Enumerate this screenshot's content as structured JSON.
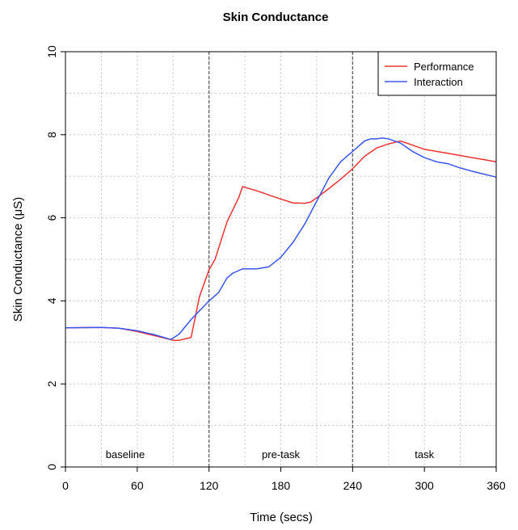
{
  "chart_data": {
    "type": "line",
    "title": "Skin Conductance",
    "xlabel": "Time (secs)",
    "ylabel": "Skin Conductance (μS)",
    "xlim": [
      0,
      360
    ],
    "ylim": [
      0,
      10
    ],
    "x_ticks": [
      0,
      60,
      120,
      180,
      240,
      300,
      360
    ],
    "y_ticks": [
      0,
      2,
      4,
      6,
      8,
      10
    ],
    "grid": true,
    "legend_position": "top-right",
    "phase_boundaries": [
      120,
      240
    ],
    "phases": [
      {
        "label": "baseline",
        "x": 50
      },
      {
        "label": "pre-task",
        "x": 180
      },
      {
        "label": "task",
        "x": 300
      }
    ],
    "series": [
      {
        "name": "Performance",
        "color": "#ee3333",
        "x": [
          0,
          30,
          45,
          60,
          75,
          90,
          95,
          105,
          112,
          120,
          125,
          135,
          145,
          148,
          160,
          175,
          190,
          200,
          205,
          210,
          220,
          230,
          240,
          250,
          260,
          270,
          280,
          290,
          300,
          310,
          320,
          330,
          340,
          350,
          360
        ],
        "y": [
          3.35,
          3.36,
          3.34,
          3.26,
          3.16,
          3.05,
          3.05,
          3.12,
          4.1,
          4.75,
          5.0,
          5.9,
          6.5,
          6.75,
          6.65,
          6.5,
          6.36,
          6.35,
          6.38,
          6.48,
          6.7,
          6.93,
          7.18,
          7.48,
          7.68,
          7.78,
          7.85,
          7.75,
          7.65,
          7.6,
          7.55,
          7.5,
          7.45,
          7.4,
          7.35
        ]
      },
      {
        "name": "Interaction",
        "color": "#3b55f0",
        "x": [
          0,
          30,
          45,
          60,
          75,
          88,
          95,
          105,
          115,
          120,
          128,
          135,
          140,
          148,
          160,
          170,
          180,
          190,
          200,
          210,
          220,
          230,
          240,
          250,
          255,
          260,
          265,
          270,
          280,
          290,
          300,
          310,
          320,
          330,
          340,
          350,
          360
        ],
        "y": [
          3.35,
          3.36,
          3.34,
          3.28,
          3.18,
          3.07,
          3.2,
          3.55,
          3.85,
          4.0,
          4.2,
          4.55,
          4.67,
          4.77,
          4.77,
          4.82,
          5.05,
          5.4,
          5.85,
          6.4,
          6.95,
          7.35,
          7.6,
          7.85,
          7.9,
          7.9,
          7.92,
          7.9,
          7.8,
          7.6,
          7.45,
          7.35,
          7.3,
          7.2,
          7.12,
          7.05,
          6.98
        ]
      }
    ]
  }
}
